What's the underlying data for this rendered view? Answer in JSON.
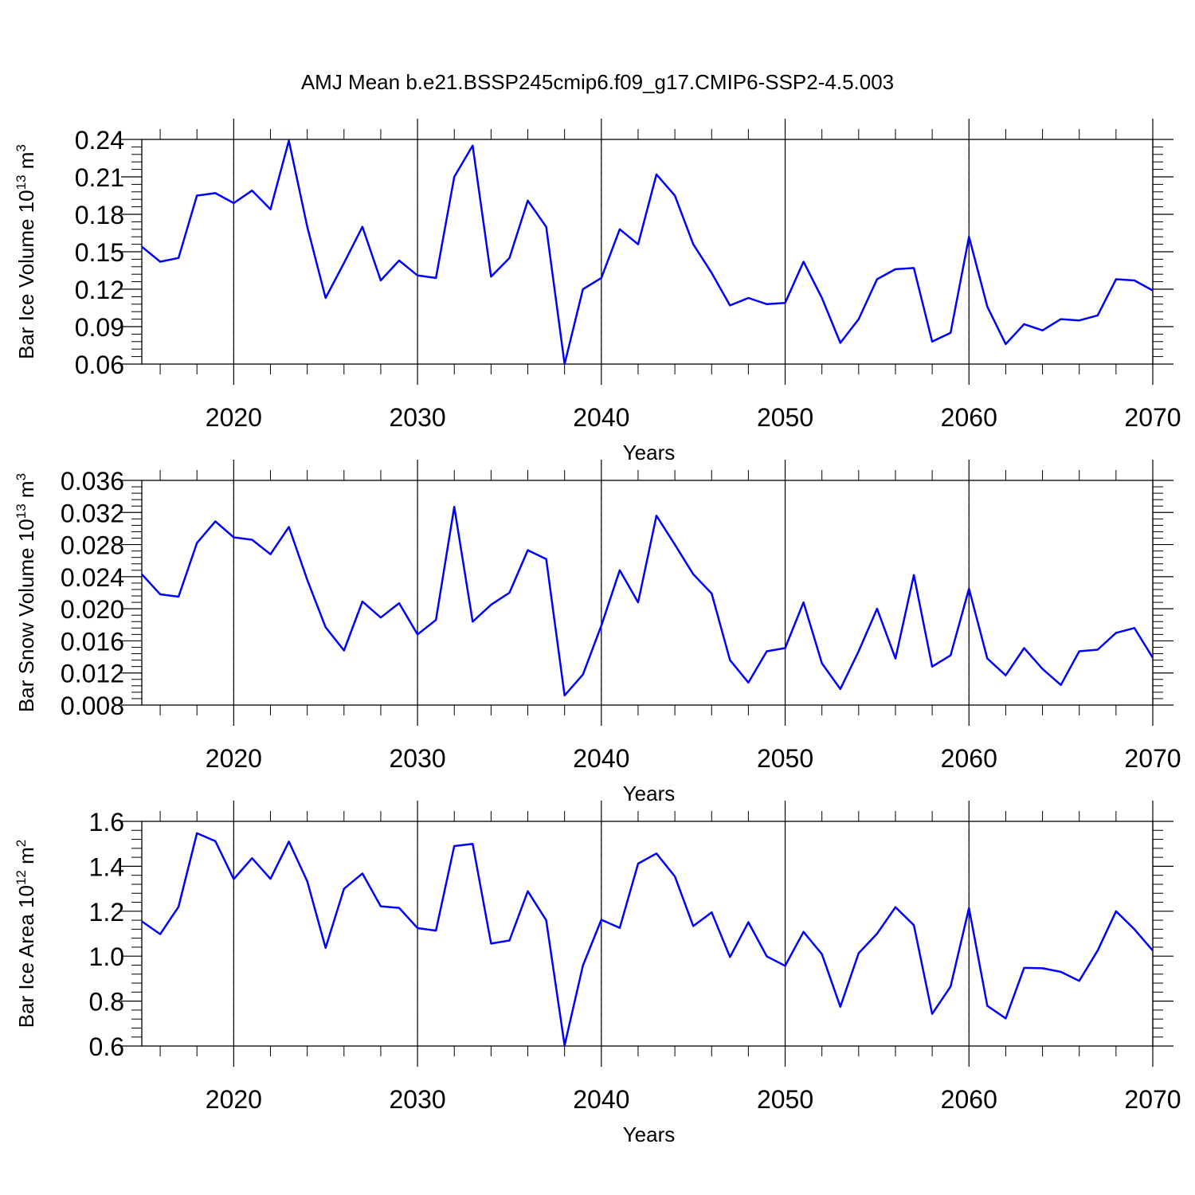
{
  "title": "AMJ Mean b.e21.BSSP245cmip6.f09_g17.CMIP6-SSP2-4.5.003",
  "colors": {
    "line": "#0000ff",
    "axis": "#000000",
    "grid": "#555555"
  },
  "chart_data": [
    {
      "type": "line",
      "xlabel": "Years",
      "ylabel_main": "Bar Ice Volume 10",
      "ylabel_sup": "13",
      "ylabel_unit": " m",
      "ylabel_unit_sup": "3",
      "xlim": [
        2015,
        2070
      ],
      "ylim": [
        0.06,
        0.24
      ],
      "yticks": [
        "0.06",
        "0.09",
        "0.12",
        "0.15",
        "0.18",
        "0.21",
        "0.24"
      ],
      "xticks": [
        "2020",
        "2030",
        "2040",
        "2050",
        "2060",
        "2070"
      ],
      "grid": "vertical dashed at major x ticks",
      "x": [
        2015,
        2016,
        2017,
        2018,
        2019,
        2020,
        2021,
        2022,
        2023,
        2024,
        2025,
        2026,
        2027,
        2028,
        2029,
        2030,
        2031,
        2032,
        2033,
        2034,
        2035,
        2036,
        2037,
        2038,
        2039,
        2040,
        2041,
        2042,
        2043,
        2044,
        2045,
        2046,
        2047,
        2048,
        2049,
        2050,
        2051,
        2052,
        2053,
        2054,
        2055,
        2056,
        2057,
        2058,
        2059,
        2060,
        2061,
        2062,
        2063,
        2064,
        2065,
        2066,
        2067,
        2068,
        2069,
        2070
      ],
      "values": [
        0.154,
        0.142,
        0.145,
        0.195,
        0.197,
        0.189,
        0.199,
        0.184,
        0.239,
        0.17,
        0.113,
        0.141,
        0.17,
        0.127,
        0.143,
        0.131,
        0.129,
        0.21,
        0.235,
        0.13,
        0.145,
        0.191,
        0.17,
        0.06,
        0.12,
        0.129,
        0.168,
        0.156,
        0.212,
        0.195,
        0.156,
        0.133,
        0.107,
        0.113,
        0.108,
        0.109,
        0.142,
        0.113,
        0.077,
        0.096,
        0.128,
        0.136,
        0.137,
        0.078,
        0.085,
        0.162,
        0.106,
        0.076,
        0.092,
        0.087,
        0.096,
        0.095,
        0.099,
        0.128,
        0.127,
        0.119
      ]
    },
    {
      "type": "line",
      "xlabel": "Years",
      "ylabel_main": "Bar Snow Volume 10",
      "ylabel_sup": "13",
      "ylabel_unit": " m",
      "ylabel_unit_sup": "3",
      "xlim": [
        2015,
        2070
      ],
      "ylim": [
        0.008,
        0.036
      ],
      "yticks": [
        "0.008",
        "0.012",
        "0.016",
        "0.020",
        "0.024",
        "0.028",
        "0.032",
        "0.036"
      ],
      "xticks": [
        "2020",
        "2030",
        "2040",
        "2050",
        "2060",
        "2070"
      ],
      "grid": "vertical dashed at major x ticks",
      "x": [
        2015,
        2016,
        2017,
        2018,
        2019,
        2020,
        2021,
        2022,
        2023,
        2024,
        2025,
        2026,
        2027,
        2028,
        2029,
        2030,
        2031,
        2032,
        2033,
        2034,
        2035,
        2036,
        2037,
        2038,
        2039,
        2040,
        2041,
        2042,
        2043,
        2044,
        2045,
        2046,
        2047,
        2048,
        2049,
        2050,
        2051,
        2052,
        2053,
        2054,
        2055,
        2056,
        2057,
        2058,
        2059,
        2060,
        2061,
        2062,
        2063,
        2064,
        2065,
        2066,
        2067,
        2068,
        2069,
        2070
      ],
      "values": [
        0.0243,
        0.0218,
        0.0215,
        0.0282,
        0.0309,
        0.0289,
        0.0286,
        0.0268,
        0.0302,
        0.0236,
        0.0177,
        0.0148,
        0.0209,
        0.0189,
        0.0207,
        0.0168,
        0.0186,
        0.0327,
        0.0184,
        0.0205,
        0.022,
        0.0273,
        0.0262,
        0.0092,
        0.0118,
        0.0179,
        0.0248,
        0.0208,
        0.0316,
        0.028,
        0.0243,
        0.0219,
        0.0136,
        0.0108,
        0.0147,
        0.0151,
        0.0208,
        0.0132,
        0.01,
        0.0147,
        0.02,
        0.0138,
        0.0242,
        0.0128,
        0.0142,
        0.0225,
        0.0138,
        0.0117,
        0.0151,
        0.0125,
        0.0105,
        0.0147,
        0.0149,
        0.017,
        0.0176,
        0.0139
      ]
    },
    {
      "type": "line",
      "xlabel": "Years",
      "ylabel_main": "Bar Ice Area 10",
      "ylabel_sup": "12",
      "ylabel_unit": " m",
      "ylabel_unit_sup": "2",
      "xlim": [
        2015,
        2070
      ],
      "ylim": [
        0.6,
        1.6
      ],
      "yticks": [
        "0.6",
        "0.8",
        "1.0",
        "1.2",
        "1.4",
        "1.6"
      ],
      "xticks": [
        "2020",
        "2030",
        "2040",
        "2050",
        "2060",
        "2070"
      ],
      "grid": "vertical dashed at major x ticks",
      "x": [
        2015,
        2016,
        2017,
        2018,
        2019,
        2020,
        2021,
        2022,
        2023,
        2024,
        2025,
        2026,
        2027,
        2028,
        2029,
        2030,
        2031,
        2032,
        2033,
        2034,
        2035,
        2036,
        2037,
        2038,
        2039,
        2040,
        2041,
        2042,
        2043,
        2044,
        2045,
        2046,
        2047,
        2048,
        2049,
        2050,
        2051,
        2052,
        2053,
        2054,
        2055,
        2056,
        2057,
        2058,
        2059,
        2060,
        2061,
        2062,
        2063,
        2064,
        2065,
        2066,
        2067,
        2068,
        2069,
        2070
      ],
      "values": [
        1.155,
        1.098,
        1.22,
        1.547,
        1.512,
        1.343,
        1.436,
        1.344,
        1.51,
        1.333,
        1.037,
        1.3,
        1.368,
        1.222,
        1.215,
        1.125,
        1.114,
        1.49,
        1.5,
        1.056,
        1.07,
        1.289,
        1.16,
        0.603,
        0.958,
        1.162,
        1.126,
        1.412,
        1.457,
        1.355,
        1.134,
        1.195,
        0.996,
        1.151,
        0.999,
        0.957,
        1.108,
        1.009,
        0.775,
        1.013,
        1.1,
        1.218,
        1.138,
        0.743,
        0.865,
        1.214,
        0.779,
        0.723,
        0.948,
        0.946,
        0.93,
        0.89,
        1.025,
        1.2,
        1.12,
        1.025
      ]
    }
  ]
}
